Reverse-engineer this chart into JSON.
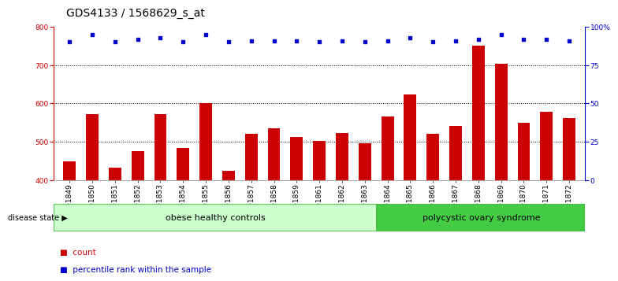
{
  "title": "GDS4133 / 1568629_s_at",
  "samples": [
    "GSM201849",
    "GSM201850",
    "GSM201851",
    "GSM201852",
    "GSM201853",
    "GSM201854",
    "GSM201855",
    "GSM201856",
    "GSM201857",
    "GSM201858",
    "GSM201859",
    "GSM201861",
    "GSM201862",
    "GSM201863",
    "GSM201864",
    "GSM201865",
    "GSM201866",
    "GSM201867",
    "GSM201868",
    "GSM201869",
    "GSM201870",
    "GSM201871",
    "GSM201872"
  ],
  "counts": [
    449,
    571,
    432,
    476,
    572,
    484,
    600,
    425,
    521,
    535,
    512,
    503,
    523,
    497,
    566,
    624,
    521,
    541,
    750,
    703,
    549,
    578,
    562
  ],
  "percentile_ranks": [
    90,
    95,
    90,
    92,
    93,
    90,
    95,
    90,
    91,
    91,
    91,
    90,
    91,
    90,
    91,
    93,
    90,
    91,
    92,
    95,
    92,
    92,
    91
  ],
  "bar_color": "#cc0000",
  "dot_color": "#0000cc",
  "ylim_left": [
    400,
    800
  ],
  "ylim_right": [
    0,
    100
  ],
  "yticks_left": [
    400,
    500,
    600,
    700,
    800
  ],
  "yticks_right": [
    0,
    25,
    50,
    75,
    100
  ],
  "group1_label": "obese healthy controls",
  "group2_label": "polycystic ovary syndrome",
  "group1_count": 14,
  "group2_count": 9,
  "disease_label": "disease state",
  "legend_count_label": "count",
  "legend_pct_label": "percentile rank within the sample",
  "group1_color": "#ccffcc",
  "group2_color": "#44cc44",
  "group_edge_color": "#44bb44",
  "background_color": "#ffffff",
  "title_fontsize": 10,
  "tick_fontsize": 6.5,
  "label_fontsize": 8,
  "legend_fontsize": 7.5
}
